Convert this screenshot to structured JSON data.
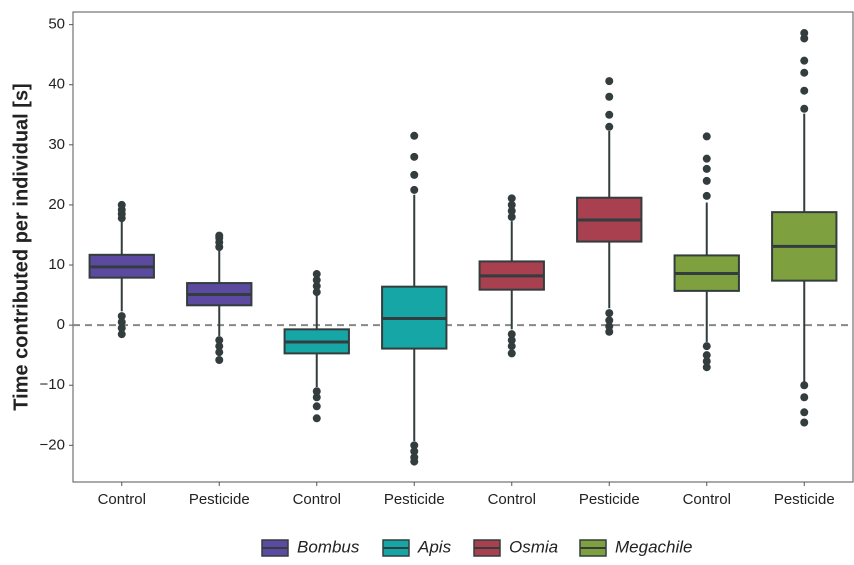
{
  "chart_data": {
    "type": "box",
    "y_label": "Time contributed per individual [s]",
    "categories": [
      "Control",
      "Pesticide",
      "Control",
      "Pesticide",
      "Control",
      "Pesticide",
      "Control",
      "Pesticide"
    ],
    "ylim": [
      -26.1,
      52.1
    ],
    "yticks": [
      {
        "value": -20,
        "label": "−20"
      },
      {
        "value": -10,
        "label": "−10"
      },
      0,
      10,
      20,
      30,
      40,
      50
    ],
    "hline": 0,
    "series": [
      {
        "name": "Bombus",
        "color": "#5b4a9f",
        "boxes": [
          {
            "min": 2.3,
            "q1": 7.9,
            "median": 9.7,
            "q3": 11.7,
            "max": 17.4,
            "outliers": [
              17.8,
              18.5,
              19.2,
              20.0,
              1.5,
              0.5,
              -0.5,
              -1.5
            ]
          },
          {
            "min": -1.8,
            "q1": 3.3,
            "median": 5.1,
            "q3": 7.0,
            "max": 12.4,
            "outliers": [
              13.0,
              13.8,
              14.5,
              14.9,
              -2.5,
              -3.5,
              -4.5,
              -5.8
            ]
          }
        ]
      },
      {
        "name": "Apis",
        "color": "#17a6a6",
        "boxes": [
          {
            "min": -10.3,
            "q1": -4.7,
            "median": -2.8,
            "q3": -0.7,
            "max": 5.0,
            "outliers": [
              5.5,
              6.5,
              7.5,
              8.5,
              -11.0,
              -12.0,
              -13.5,
              -15.5
            ]
          },
          {
            "min": -19.3,
            "q1": -3.9,
            "median": 1.1,
            "q3": 6.4,
            "max": 21.7,
            "outliers": [
              22.5,
              25.0,
              28.0,
              31.5,
              -20.0,
              -21.0,
              -22.0,
              -22.7
            ]
          }
        ]
      },
      {
        "name": "Osmia",
        "color": "#a9404f",
        "boxes": [
          {
            "min": -0.7,
            "q1": 5.9,
            "median": 8.2,
            "q3": 10.6,
            "max": 17.3,
            "outliers": [
              18.0,
              19.0,
              20.0,
              21.1,
              -1.5,
              -2.5,
              -3.5,
              -4.7
            ]
          },
          {
            "min": 2.8,
            "q1": 13.9,
            "median": 17.5,
            "q3": 21.2,
            "max": 32.3,
            "outliers": [
              33.0,
              35.0,
              38.0,
              40.6,
              2.0,
              0.8,
              -0.2,
              -1.1
            ]
          }
        ]
      },
      {
        "name": "Megachile",
        "color": "#7ea03f",
        "boxes": [
          {
            "min": -2.8,
            "q1": 5.7,
            "median": 8.6,
            "q3": 11.6,
            "max": 20.4,
            "outliers": [
              21.5,
              24.0,
              26.0,
              27.7,
              31.4,
              -3.5,
              -5.0,
              -6.0,
              -7.0
            ]
          },
          {
            "min": -9.4,
            "q1": 7.4,
            "median": 13.1,
            "q3": 18.8,
            "max": 35.2,
            "outliers": [
              36.0,
              39.0,
              42.0,
              44.0,
              47.7,
              48.6,
              -10.0,
              -12.0,
              -14.5,
              -16.2
            ]
          }
        ]
      }
    ]
  }
}
